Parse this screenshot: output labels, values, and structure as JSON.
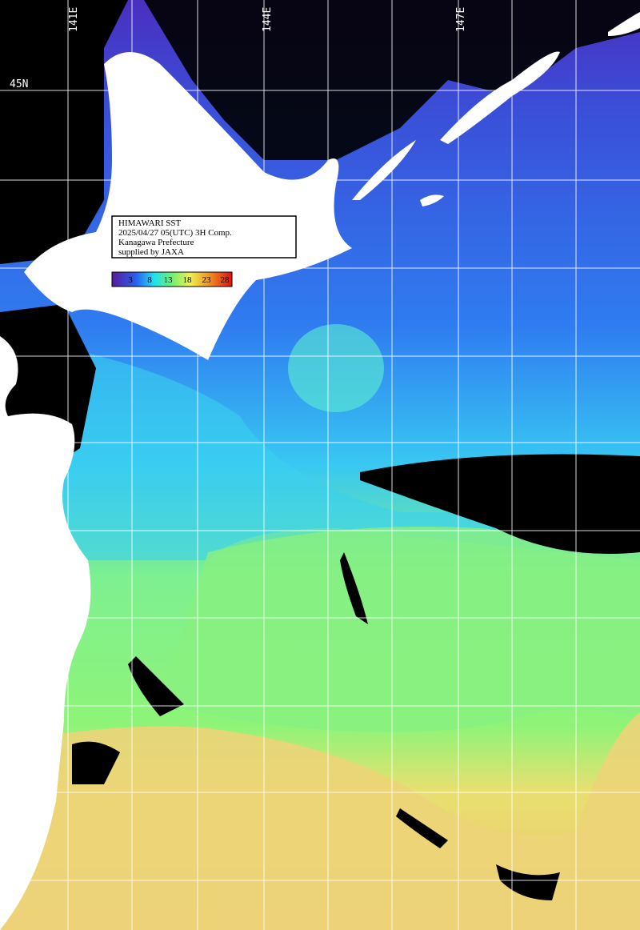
{
  "map": {
    "longitude_labels": [
      "141E",
      "144E",
      "147E"
    ],
    "latitude_labels": [
      "45N"
    ],
    "info_box": [
      "HIMAWARI SST",
      "2025/04/27 05(UTC) 3H Comp.",
      "Kanagawa Prefecture",
      "supplied by JAXA"
    ],
    "colorbar_labels": [
      "3",
      "8",
      "13",
      "18",
      "23",
      "28"
    ]
  }
}
